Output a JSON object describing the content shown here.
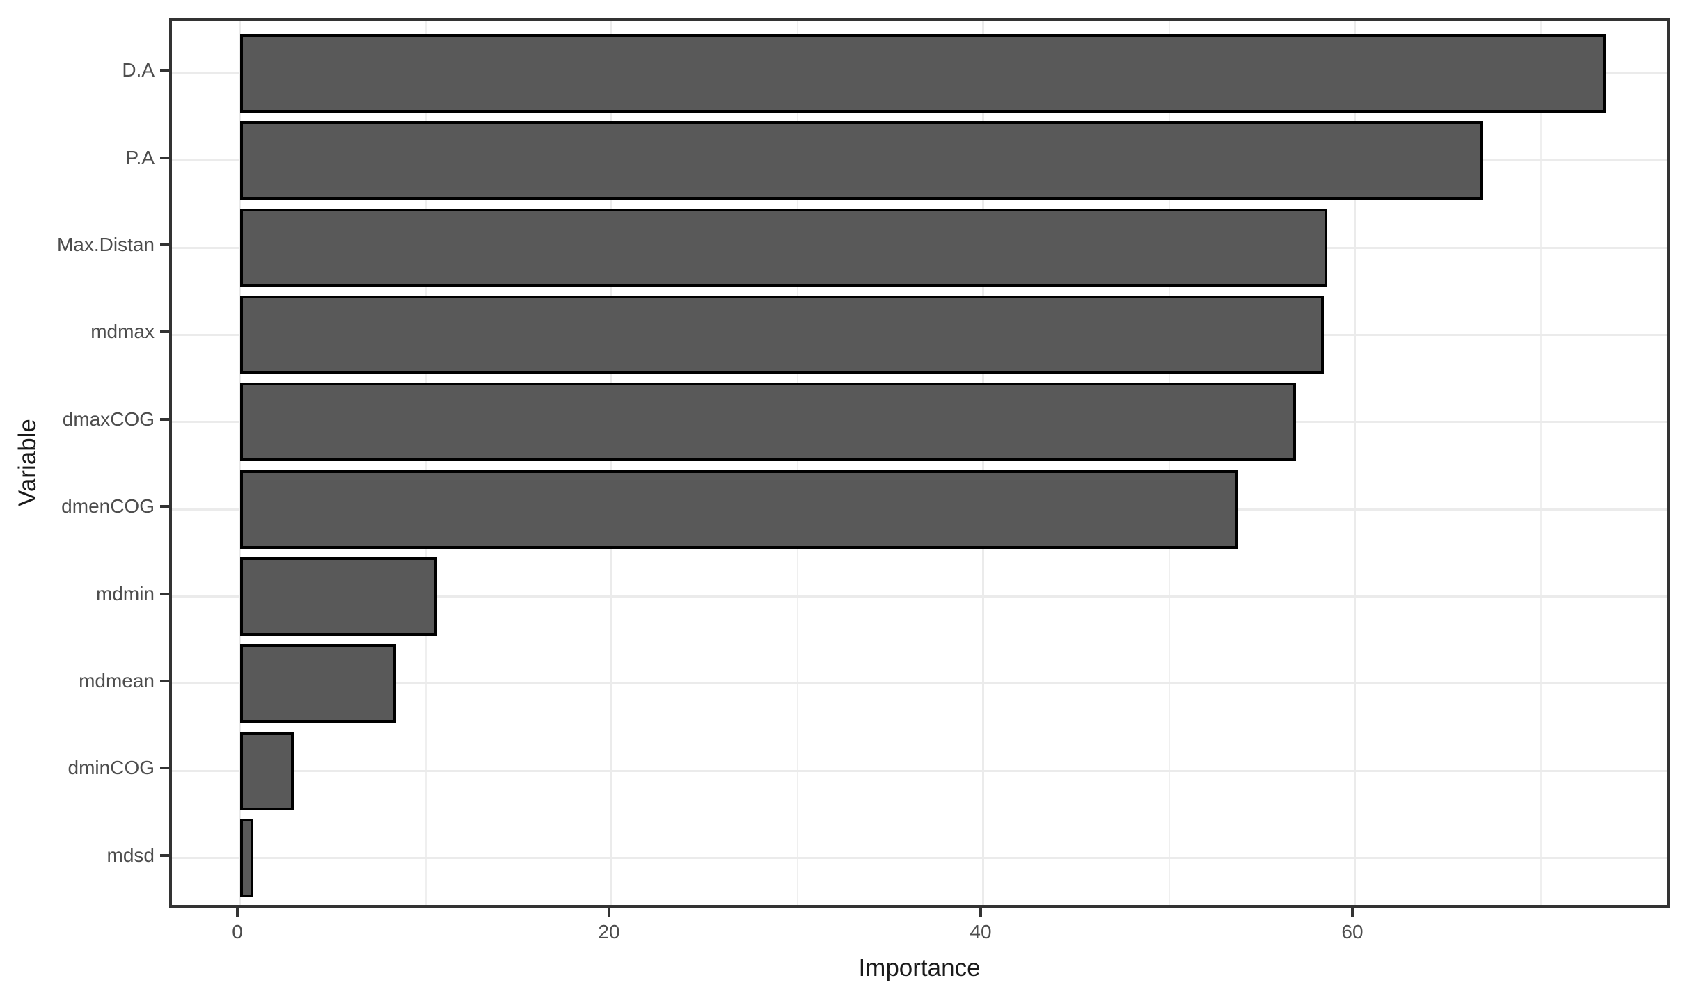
{
  "chart_data": {
    "type": "bar",
    "orientation": "horizontal",
    "title": "",
    "xlabel": "Importance",
    "ylabel": "Variable",
    "categories": [
      "D.A",
      "P.A",
      "Max.Distan",
      "mdmax",
      "dmaxCOG",
      "dmenCOG",
      "mdmin",
      "mdmean",
      "dminCOG",
      "mdsd"
    ],
    "values": [
      73.5,
      66.9,
      58.5,
      58.3,
      56.8,
      53.7,
      10.6,
      8.4,
      2.9,
      0.7
    ],
    "x_ticks": [
      0,
      20,
      40,
      60
    ],
    "x_minor_gridlines": [
      10,
      30,
      50,
      70
    ],
    "xlim": [
      -3.67,
      77.08
    ],
    "grid": "on",
    "legend": "none",
    "bar_width_fraction": 0.9,
    "colors": {
      "bar_fill": "#595959",
      "bar_stroke": "#000000",
      "panel_border": "#333333",
      "grid_major": "#ebebeb",
      "grid_minor": "#efefef",
      "tick_mark": "#333333",
      "tick_label": "#4d4d4d",
      "axis_title": "#1a1a1a",
      "background": "#ffffff"
    }
  }
}
